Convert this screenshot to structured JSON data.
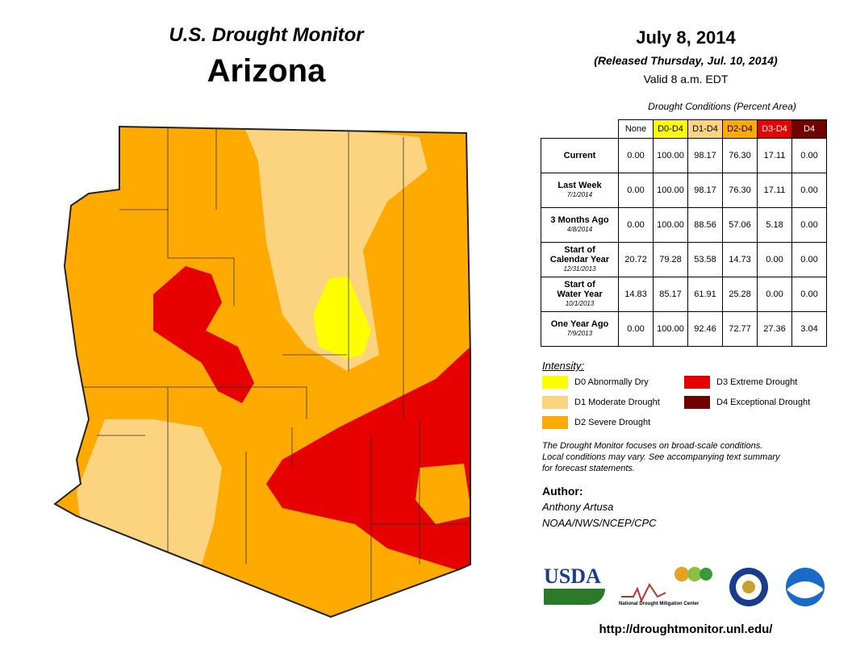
{
  "header": {
    "title": "U.S. Drought Monitor",
    "state": "Arizona",
    "date": "July 8, 2014",
    "released": "(Released Thursday, Jul. 10, 2014)",
    "valid": "Valid 8 a.m. EDT"
  },
  "table": {
    "caption": "Drought Conditions (Percent Area)",
    "columns": [
      "None",
      "D0-D4",
      "D1-D4",
      "D2-D4",
      "D3-D4",
      "D4"
    ],
    "rows": [
      {
        "label": [
          "Current"
        ],
        "values": [
          "0.00",
          "100.00",
          "98.17",
          "76.30",
          "17.11",
          "0.00"
        ]
      },
      {
        "label": [
          "Last Week"
        ],
        "date": "7/1/2014",
        "values": [
          "0.00",
          "100.00",
          "98.17",
          "76.30",
          "17.11",
          "0.00"
        ]
      },
      {
        "label": [
          "3 Months Ago"
        ],
        "date": "4/8/2014",
        "values": [
          "0.00",
          "100.00",
          "88.56",
          "57.06",
          "5.18",
          "0.00"
        ]
      },
      {
        "label": [
          "Start of",
          "Calendar Year"
        ],
        "date": "12/31/2013",
        "values": [
          "20.72",
          "79.28",
          "53.58",
          "14.73",
          "0.00",
          "0.00"
        ]
      },
      {
        "label": [
          "Start of",
          "Water Year"
        ],
        "date": "10/1/2013",
        "values": [
          "14.83",
          "85.17",
          "61.91",
          "25.28",
          "0.00",
          "0.00"
        ]
      },
      {
        "label": [
          "One Year Ago"
        ],
        "date": "7/9/2013",
        "values": [
          "0.00",
          "100.00",
          "92.46",
          "72.77",
          "27.36",
          "3.04"
        ]
      }
    ]
  },
  "legend": {
    "title": "Intensity:",
    "items": [
      "D0 Abnormally Dry",
      "D1 Moderate Drought",
      "D2 Severe Drought",
      "D3 Extreme Drought",
      "D4 Exceptional Drought"
    ]
  },
  "note": [
    "The Drought Monitor focuses on broad-scale conditions.",
    "Local conditions may vary. See accompanying text summary",
    "for forecast statements."
  ],
  "author": {
    "label": "Author:",
    "name": "Anthony Artusa",
    "org": "NOAA/NWS/NCEP/CPC"
  },
  "logos": {
    "usda": "USDA",
    "ndmc": "National Drought Mitigation Center"
  },
  "url": "http://droughtmonitor.unl.edu/"
}
